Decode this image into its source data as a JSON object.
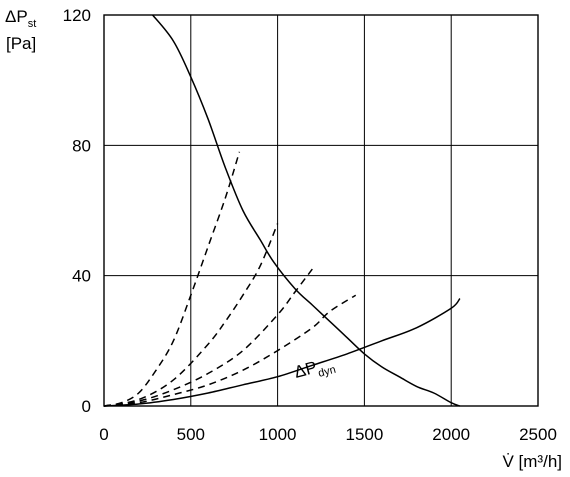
{
  "chart_data": {
    "type": "line",
    "ylabel_main": "ΔP",
    "ylabel_sub": "st",
    "ylabel_unit": "[Pa]",
    "xlabel": "V̇ [m³/h]",
    "xlim": [
      0,
      2500
    ],
    "ylim": [
      0,
      120
    ],
    "x_ticks": [
      "0",
      "500",
      "1000",
      "1500",
      "2000",
      "2500"
    ],
    "y_ticks": [
      "0",
      "40",
      "80",
      "120"
    ],
    "grid": true,
    "series": [
      {
        "style": "solid",
        "points": [
          [
            280,
            120
          ],
          [
            400,
            112
          ],
          [
            500,
            101
          ],
          [
            600,
            88
          ],
          [
            700,
            73
          ],
          [
            800,
            60
          ],
          [
            900,
            51
          ],
          [
            980,
            44
          ],
          [
            1100,
            36
          ],
          [
            1200,
            31
          ],
          [
            1300,
            26
          ],
          [
            1400,
            21
          ],
          [
            1500,
            16
          ],
          [
            1600,
            12
          ],
          [
            1700,
            9
          ],
          [
            1800,
            6
          ],
          [
            1900,
            4
          ],
          [
            2000,
            1
          ],
          [
            2050,
            0
          ]
        ]
      },
      {
        "name": "ΔP_dyn",
        "label_main": "ΔP",
        "label_sub": "dyn",
        "style": "solid",
        "points": [
          [
            0,
            0
          ],
          [
            200,
            0.6
          ],
          [
            400,
            2
          ],
          [
            600,
            4
          ],
          [
            800,
            6.5
          ],
          [
            1000,
            9
          ],
          [
            1200,
            12.5
          ],
          [
            1400,
            16
          ],
          [
            1600,
            20
          ],
          [
            1800,
            24
          ],
          [
            2000,
            30
          ],
          [
            2050,
            33
          ]
        ]
      },
      {
        "style": "dashed",
        "points": [
          [
            0,
            0
          ],
          [
            100,
            1
          ],
          [
            200,
            4
          ],
          [
            300,
            11
          ],
          [
            400,
            20
          ],
          [
            500,
            34
          ],
          [
            600,
            49
          ],
          [
            700,
            64
          ],
          [
            780,
            78
          ]
        ]
      },
      {
        "style": "dashed",
        "points": [
          [
            0,
            0
          ],
          [
            200,
            2
          ],
          [
            400,
            8
          ],
          [
            600,
            19
          ],
          [
            700,
            26
          ],
          [
            800,
            34
          ],
          [
            900,
            43
          ],
          [
            1000,
            56
          ]
        ]
      },
      {
        "style": "dashed",
        "points": [
          [
            0,
            0
          ],
          [
            200,
            1.5
          ],
          [
            400,
            5
          ],
          [
            600,
            10
          ],
          [
            800,
            17
          ],
          [
            1000,
            28
          ],
          [
            1100,
            35
          ],
          [
            1200,
            42
          ]
        ]
      },
      {
        "style": "dashed",
        "points": [
          [
            0,
            0
          ],
          [
            200,
            1
          ],
          [
            400,
            3.5
          ],
          [
            600,
            6.5
          ],
          [
            800,
            11
          ],
          [
            1000,
            17
          ],
          [
            1200,
            24
          ],
          [
            1300,
            29
          ],
          [
            1450,
            34
          ]
        ]
      }
    ]
  }
}
